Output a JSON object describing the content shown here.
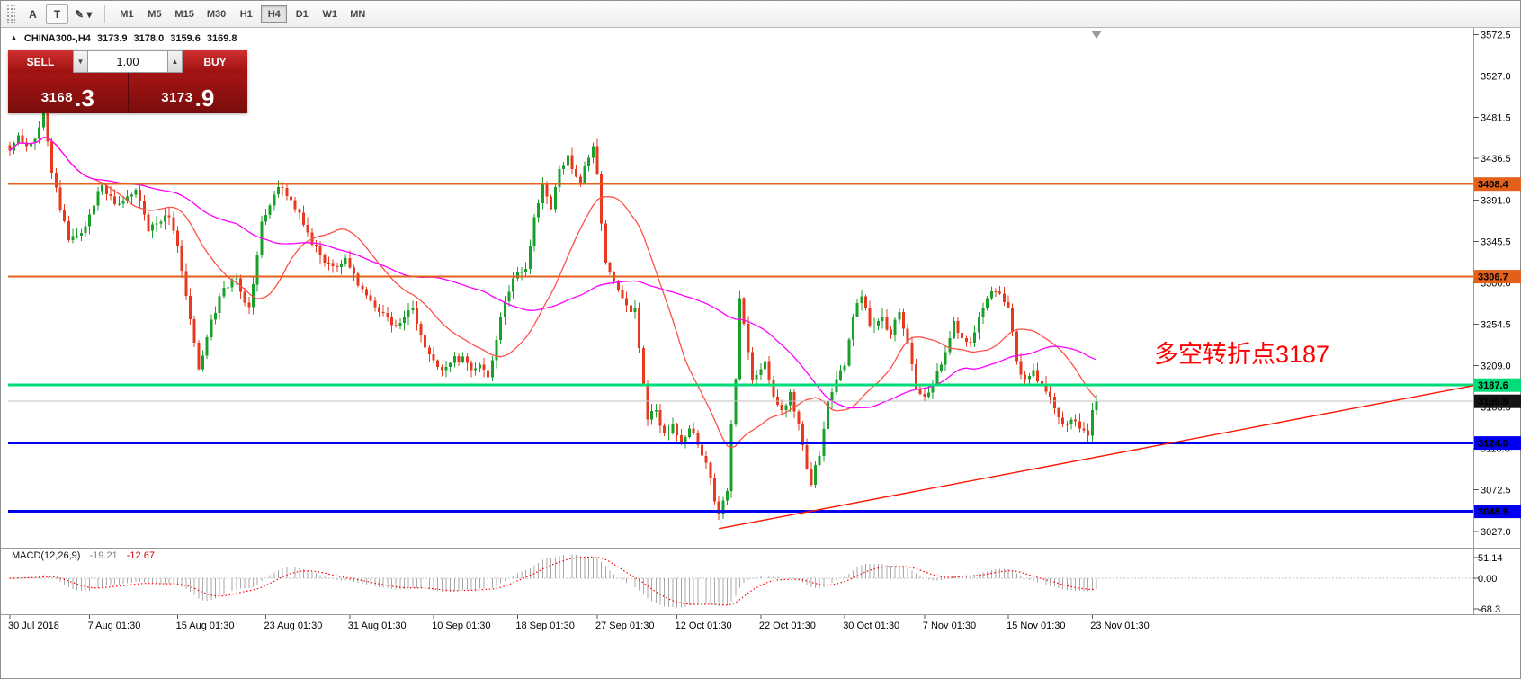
{
  "window": {
    "title": "CHINA300-,H4"
  },
  "toolbar": {
    "tools": [
      {
        "id": "cursor-tool",
        "label": "A",
        "boxed": false
      },
      {
        "id": "text-tool",
        "label": "T",
        "boxed": true
      },
      {
        "id": "drawing-tools",
        "label": "✎ ▾",
        "boxed": false
      }
    ],
    "periods": [
      "M1",
      "M5",
      "M15",
      "M30",
      "H1",
      "H4",
      "D1",
      "W1",
      "MN"
    ],
    "active_period": "H4"
  },
  "symbol_header": {
    "collapse_icon": "▲",
    "symbol": "CHINA300-,H4",
    "open": "3173.9",
    "high": "3178.0",
    "low": "3159.6",
    "close": "3169.8"
  },
  "trade_panel": {
    "sell_label": "SELL",
    "buy_label": "BUY",
    "volume": "1.00",
    "volume_down_icon": "▼",
    "volume_up_icon": "▲",
    "sell_price": {
      "main": "3168",
      "fraction": ".3"
    },
    "buy_price": {
      "main": "3173",
      "fraction": ".9"
    }
  },
  "annotation": {
    "text": "多空转折点3187",
    "color": "#ff0000"
  },
  "macd_label": {
    "name": "MACD(12,26,9)",
    "value_main": "-19.21",
    "value_signal": "-12.67"
  },
  "chart_data": {
    "type": "candlestick",
    "symbol": "CHINA300-",
    "timeframe": "H4",
    "price_axis": {
      "max": 3578,
      "min": 3010,
      "ticks": [
        "3572.5",
        "3527.0",
        "3481.5",
        "3436.5",
        "3391.0",
        "3345.5",
        "3300.0",
        "3254.5",
        "3209.0",
        "3163.5",
        "3118.0",
        "3072.5",
        "3027.0"
      ]
    },
    "levels": [
      {
        "price": 3408.4,
        "label": "3408.4",
        "color": "#e2601a",
        "width": 2
      },
      {
        "price": 3306.7,
        "label": "3306.7",
        "color": "#e2601a",
        "width": 2
      },
      {
        "price": 3187.6,
        "label": "3187.6",
        "color": "#00dd78",
        "width": 3
      },
      {
        "price": 3124.0,
        "label": "3124.0",
        "color": "#0000ee",
        "width": 3
      },
      {
        "price": 3048.9,
        "label": "3048.9",
        "color": "#0000ee",
        "width": 3
      }
    ],
    "current_price": {
      "price": 3169.8,
      "label": "3169.8",
      "line_color": "#c0c0c0",
      "tag_bg": "#141414"
    },
    "trendline": {
      "start_index": 169,
      "start_price": 3030,
      "end_price_at_right": 3187,
      "color": "#ff1400"
    },
    "moving_averages": [
      {
        "period": 21,
        "color": "#ff5047"
      },
      {
        "period": 55,
        "color": "#ff00ff"
      }
    ],
    "bull_color": "#18a12a",
    "bear_color": "#e8391f",
    "n_candles": 260,
    "noise": 5,
    "close_anchors": [
      [
        0,
        3445
      ],
      [
        2,
        3462
      ],
      [
        4,
        3450
      ],
      [
        6,
        3458
      ],
      [
        8,
        3490
      ],
      [
        9,
        3455
      ],
      [
        10,
        3421
      ],
      [
        12,
        3380
      ],
      [
        14,
        3347
      ],
      [
        16,
        3352
      ],
      [
        18,
        3362
      ],
      [
        20,
        3385
      ],
      [
        22,
        3407
      ],
      [
        24,
        3395
      ],
      [
        26,
        3387
      ],
      [
        28,
        3395
      ],
      [
        30,
        3402
      ],
      [
        31,
        3390
      ],
      [
        33,
        3357
      ],
      [
        35,
        3365
      ],
      [
        38,
        3372
      ],
      [
        40,
        3340
      ],
      [
        41,
        3313
      ],
      [
        43,
        3260
      ],
      [
        45,
        3205
      ],
      [
        47,
        3240
      ],
      [
        50,
        3285
      ],
      [
        52,
        3295
      ],
      [
        54,
        3305
      ],
      [
        55,
        3290
      ],
      [
        57,
        3273
      ],
      [
        59,
        3330
      ],
      [
        60,
        3367
      ],
      [
        62,
        3385
      ],
      [
        64,
        3405
      ],
      [
        66,
        3395
      ],
      [
        69,
        3377
      ],
      [
        71,
        3355
      ],
      [
        72,
        3342
      ],
      [
        74,
        3330
      ],
      [
        75,
        3322
      ],
      [
        77,
        3318
      ],
      [
        80,
        3327
      ],
      [
        82,
        3310
      ],
      [
        84,
        3293
      ],
      [
        86,
        3280
      ],
      [
        88,
        3268
      ],
      [
        90,
        3262
      ],
      [
        92,
        3253
      ],
      [
        94,
        3262
      ],
      [
        96,
        3273
      ],
      [
        97,
        3255
      ],
      [
        99,
        3229
      ],
      [
        101,
        3215
      ],
      [
        103,
        3204
      ],
      [
        105,
        3212
      ],
      [
        108,
        3219
      ],
      [
        110,
        3204
      ],
      [
        112,
        3210
      ],
      [
        114,
        3196
      ],
      [
        115,
        3215
      ],
      [
        117,
        3263
      ],
      [
        119,
        3290
      ],
      [
        120,
        3305
      ],
      [
        122,
        3312
      ],
      [
        123,
        3315
      ],
      [
        124,
        3340
      ],
      [
        125,
        3372
      ],
      [
        127,
        3410
      ],
      [
        128,
        3395
      ],
      [
        129,
        3381
      ],
      [
        130,
        3405
      ],
      [
        131,
        3425
      ],
      [
        133,
        3440
      ],
      [
        134,
        3425
      ],
      [
        136,
        3410
      ],
      [
        137,
        3428
      ],
      [
        139,
        3450
      ],
      [
        140,
        3420
      ],
      [
        141,
        3365
      ],
      [
        142,
        3322
      ],
      [
        144,
        3302
      ],
      [
        145,
        3292
      ],
      [
        146,
        3283
      ],
      [
        147,
        3275
      ],
      [
        148,
        3268
      ],
      [
        149,
        3272
      ],
      [
        151,
        3189
      ],
      [
        152,
        3150
      ],
      [
        154,
        3160
      ],
      [
        156,
        3135
      ],
      [
        158,
        3145
      ],
      [
        160,
        3125
      ],
      [
        162,
        3140
      ],
      [
        164,
        3122
      ],
      [
        165,
        3110
      ],
      [
        167,
        3086
      ],
      [
        168,
        3060
      ],
      [
        169,
        3046
      ],
      [
        171,
        3071
      ],
      [
        172,
        3145
      ],
      [
        173,
        3194
      ],
      [
        174,
        3283
      ],
      [
        175,
        3255
      ],
      [
        176,
        3224
      ],
      [
        177,
        3194
      ],
      [
        179,
        3205
      ],
      [
        180,
        3214
      ],
      [
        182,
        3175
      ],
      [
        184,
        3160
      ],
      [
        186,
        3180
      ],
      [
        188,
        3145
      ],
      [
        190,
        3096
      ],
      [
        191,
        3078
      ],
      [
        192,
        3100
      ],
      [
        193,
        3110
      ],
      [
        195,
        3170
      ],
      [
        197,
        3194
      ],
      [
        199,
        3209
      ],
      [
        201,
        3263
      ],
      [
        203,
        3285
      ],
      [
        205,
        3253
      ],
      [
        207,
        3258
      ],
      [
        208,
        3263
      ],
      [
        210,
        3243
      ],
      [
        212,
        3268
      ],
      [
        214,
        3234
      ],
      [
        216,
        3184
      ],
      [
        218,
        3175
      ],
      [
        220,
        3189
      ],
      [
        222,
        3210
      ],
      [
        223,
        3224
      ],
      [
        225,
        3258
      ],
      [
        227,
        3239
      ],
      [
        229,
        3234
      ],
      [
        231,
        3263
      ],
      [
        233,
        3283
      ],
      [
        235,
        3290
      ],
      [
        236,
        3288
      ],
      [
        238,
        3273
      ],
      [
        240,
        3214
      ],
      [
        242,
        3194
      ],
      [
        244,
        3204
      ],
      [
        246,
        3189
      ],
      [
        248,
        3175
      ],
      [
        250,
        3152
      ],
      [
        251,
        3145
      ],
      [
        253,
        3150
      ],
      [
        255,
        3140
      ],
      [
        257,
        3132
      ],
      [
        258,
        3160
      ],
      [
        259,
        3169.8
      ]
    ],
    "time_axis": [
      {
        "label": "30 Jul 2018",
        "index": 0
      },
      {
        "label": "7 Aug 01:30",
        "index": 19
      },
      {
        "label": "15 Aug 01:30",
        "index": 40
      },
      {
        "label": "23 Aug 01:30",
        "index": 61
      },
      {
        "label": "31 Aug 01:30",
        "index": 81
      },
      {
        "label": "10 Sep 01:30",
        "index": 101
      },
      {
        "label": "18 Sep 01:30",
        "index": 121
      },
      {
        "label": "27 Sep 01:30",
        "index": 140
      },
      {
        "label": "12 Oct 01:30",
        "index": 159
      },
      {
        "label": "22 Oct 01:30",
        "index": 179
      },
      {
        "label": "30 Oct 01:30",
        "index": 199
      },
      {
        "label": "7 Nov 01:30",
        "index": 218
      },
      {
        "label": "15 Nov 01:30",
        "index": 238
      },
      {
        "label": "23 Nov 01:30",
        "index": 258
      }
    ],
    "macd": {
      "fast": 12,
      "slow": 26,
      "signal": 9,
      "axis_labels": [
        "51.14",
        "0.00",
        "-68.3"
      ],
      "hist_color": "#a8a8a8",
      "signal_color": "#ff0000"
    }
  }
}
